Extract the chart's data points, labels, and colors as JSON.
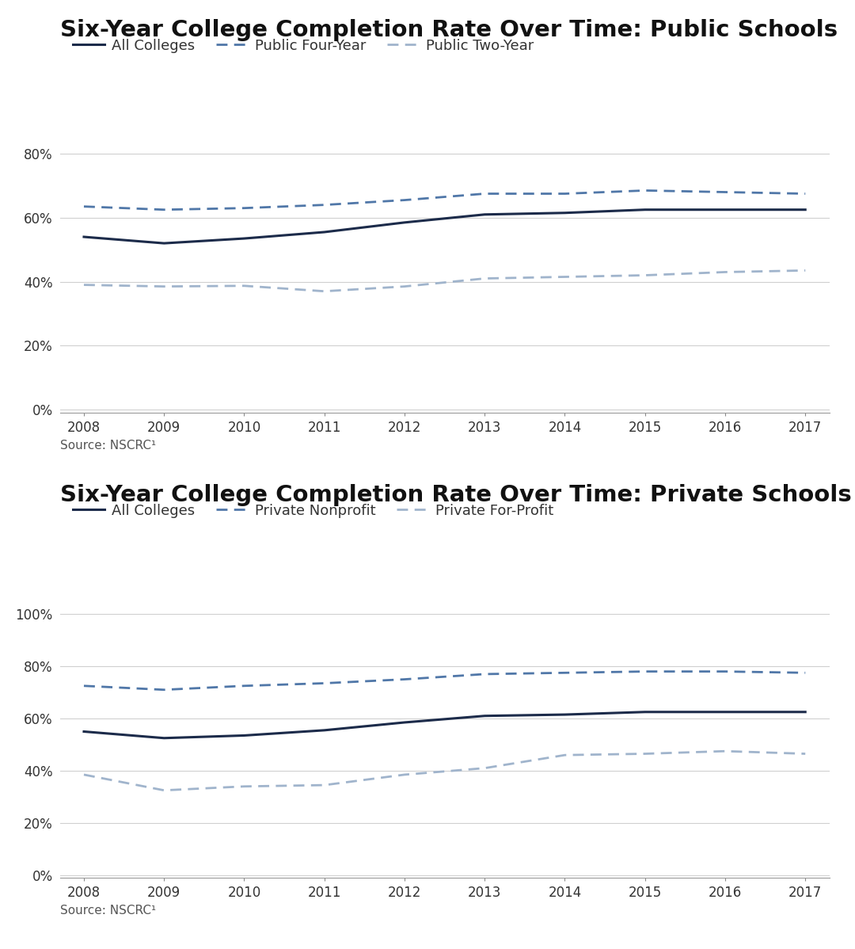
{
  "years": [
    2008,
    2009,
    2010,
    2011,
    2012,
    2013,
    2014,
    2015,
    2016,
    2017
  ],
  "public_title": "Six-Year College Completion Rate Over Time: Public Schools",
  "public_all_colleges": [
    0.54,
    0.52,
    0.535,
    0.555,
    0.585,
    0.61,
    0.615,
    0.625,
    0.625,
    0.625
  ],
  "public_four_year": [
    0.635,
    0.625,
    0.63,
    0.64,
    0.655,
    0.675,
    0.675,
    0.685,
    0.68,
    0.675
  ],
  "public_two_year": [
    0.39,
    0.385,
    0.387,
    0.37,
    0.385,
    0.41,
    0.415,
    0.42,
    0.43,
    0.435
  ],
  "private_title": "Six-Year College Completion Rate Over Time: Private Schools",
  "private_all_colleges": [
    0.55,
    0.525,
    0.535,
    0.555,
    0.585,
    0.61,
    0.615,
    0.625,
    0.625,
    0.625
  ],
  "private_nonprofit": [
    0.725,
    0.71,
    0.725,
    0.735,
    0.75,
    0.77,
    0.775,
    0.78,
    0.78,
    0.775
  ],
  "private_for_profit": [
    0.385,
    0.325,
    0.34,
    0.345,
    0.385,
    0.41,
    0.46,
    0.465,
    0.475,
    0.465
  ],
  "source_text": "Source: NSCRC¹",
  "color_dark_navy": "#1c2b4a",
  "color_medium_blue": "#5077a8",
  "color_light_blue": "#a0b4cc",
  "background_color": "#ffffff",
  "grid_color": "#d0d0d0",
  "title_fontsize": 21,
  "legend_fontsize": 13,
  "tick_fontsize": 12,
  "source_fontsize": 11,
  "public_yticks": [
    0.0,
    0.2,
    0.4,
    0.6,
    0.8
  ],
  "private_yticks": [
    0.0,
    0.2,
    0.4,
    0.6,
    0.8,
    1.0
  ],
  "public_ylim": [
    -0.01,
    0.88
  ],
  "private_ylim": [
    -0.01,
    1.08
  ],
  "public_legend_labels": [
    "All Colleges",
    "Public Four-Year",
    "Public Two-Year"
  ],
  "private_legend_labels": [
    "All Colleges",
    "Private Nonprofit",
    "Private For-Profit"
  ]
}
